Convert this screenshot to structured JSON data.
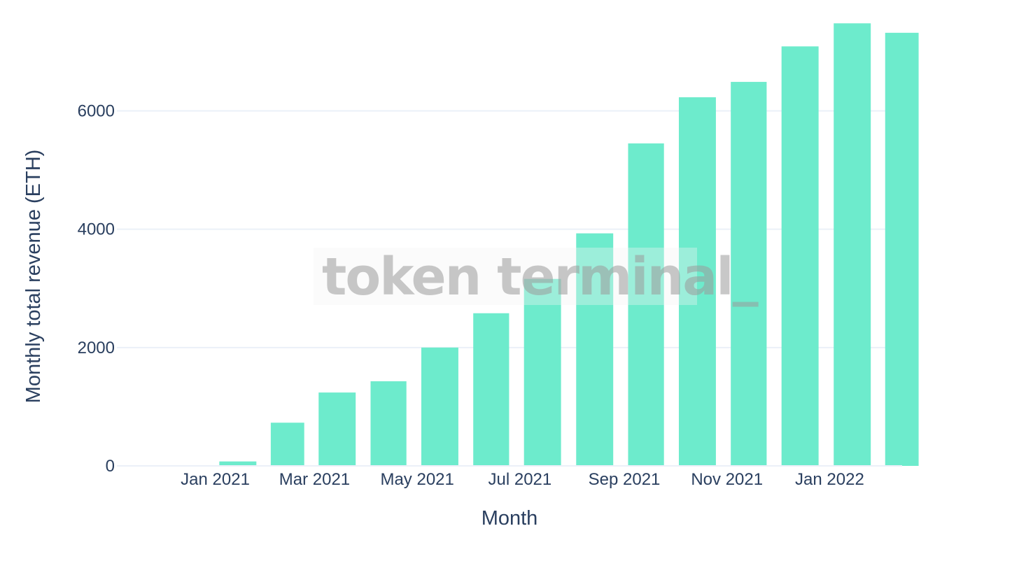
{
  "chart_data": {
    "type": "bar",
    "x": [
      "2020-12",
      "2021-01",
      "2021-02",
      "2021-03",
      "2021-04",
      "2021-05",
      "2021-06",
      "2021-07",
      "2021-08",
      "2021-09",
      "2021-10",
      "2021-11",
      "2021-12",
      "2022-01",
      "2022-02"
    ],
    "values": [
      5,
      75,
      730,
      1240,
      1430,
      2000,
      2580,
      3160,
      3930,
      5450,
      6230,
      6490,
      7090,
      7480,
      7320
    ],
    "xlabel": "Month",
    "ylabel": "Monthly total revenue (ETH)",
    "x_tick_labels": [
      "Jan 2021",
      "Mar 2021",
      "May 2021",
      "Jul 2021",
      "Sep 2021",
      "Nov 2021",
      "Jan 2022"
    ],
    "y_tick_labels": [
      "0",
      "2000",
      "4000",
      "6000"
    ],
    "y_ticks": [
      0,
      2000,
      4000,
      6000
    ],
    "ylim": [
      0,
      7874
    ],
    "grid": true,
    "bar_color": "#6debcc"
  },
  "watermark": {
    "text": "token terminal_"
  }
}
